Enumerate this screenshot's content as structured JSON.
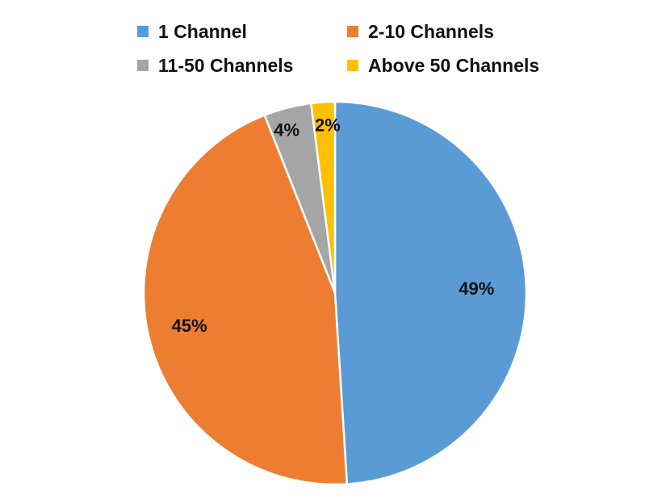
{
  "chart_data": {
    "type": "pie",
    "title": "",
    "categories": [
      "1 Channel",
      "2-10 Channels",
      "11-50 Channels",
      "Above 50 Channels"
    ],
    "values": [
      49,
      45,
      4,
      2
    ],
    "data_labels": [
      "49%",
      "45%",
      "4%",
      "2%"
    ],
    "colors": [
      "#5B9BD5",
      "#ED7D31",
      "#A5A5A5",
      "#FFC000"
    ],
    "legend_position": "top"
  }
}
